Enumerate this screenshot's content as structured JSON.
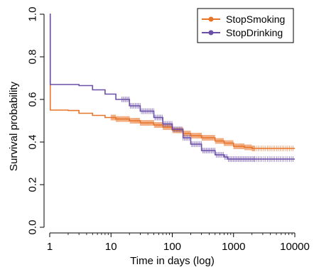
{
  "chart_data": {
    "type": "line",
    "title": "",
    "xlabel": "Time in days (log)",
    "ylabel": "Survival probability",
    "xscale": "log",
    "xlim": [
      1,
      10000
    ],
    "ylim": [
      0,
      1
    ],
    "x_ticks": [
      1,
      10,
      100,
      1000,
      10000
    ],
    "x_tick_labels": [
      "1",
      "10",
      "100",
      "1000",
      "10000"
    ],
    "y_ticks": [
      0.0,
      0.2,
      0.4,
      0.6,
      0.8,
      1.0
    ],
    "y_tick_labels": [
      "0.0",
      "0.2",
      "0.4",
      "0.6",
      "0.8",
      "1.0"
    ],
    "grid": false,
    "legend_position": "top-right",
    "series": [
      {
        "name": "StopSmoking",
        "color": "#e8742a",
        "points": [
          [
            1,
            1.0
          ],
          [
            1.02,
            0.55
          ],
          [
            2,
            0.548
          ],
          [
            3,
            0.535
          ],
          [
            5,
            0.525
          ],
          [
            8,
            0.515
          ],
          [
            12,
            0.508
          ],
          [
            20,
            0.5
          ],
          [
            30,
            0.49
          ],
          [
            50,
            0.48
          ],
          [
            70,
            0.47
          ],
          [
            100,
            0.455
          ],
          [
            150,
            0.44
          ],
          [
            200,
            0.43
          ],
          [
            300,
            0.42
          ],
          [
            500,
            0.405
          ],
          [
            700,
            0.395
          ],
          [
            1000,
            0.38
          ],
          [
            1500,
            0.375
          ],
          [
            2000,
            0.37
          ],
          [
            10000,
            0.37
          ]
        ]
      },
      {
        "name": "StopDrinking",
        "color": "#6b4fa8",
        "points": [
          [
            1,
            1.0
          ],
          [
            1.02,
            0.67
          ],
          [
            3,
            0.665
          ],
          [
            5,
            0.645
          ],
          [
            8,
            0.625
          ],
          [
            12,
            0.6
          ],
          [
            20,
            0.57
          ],
          [
            30,
            0.545
          ],
          [
            50,
            0.515
          ],
          [
            70,
            0.485
          ],
          [
            100,
            0.46
          ],
          [
            150,
            0.42
          ],
          [
            200,
            0.39
          ],
          [
            300,
            0.36
          ],
          [
            500,
            0.34
          ],
          [
            700,
            0.33
          ],
          [
            800,
            0.32
          ],
          [
            10000,
            0.32
          ]
        ]
      }
    ]
  }
}
